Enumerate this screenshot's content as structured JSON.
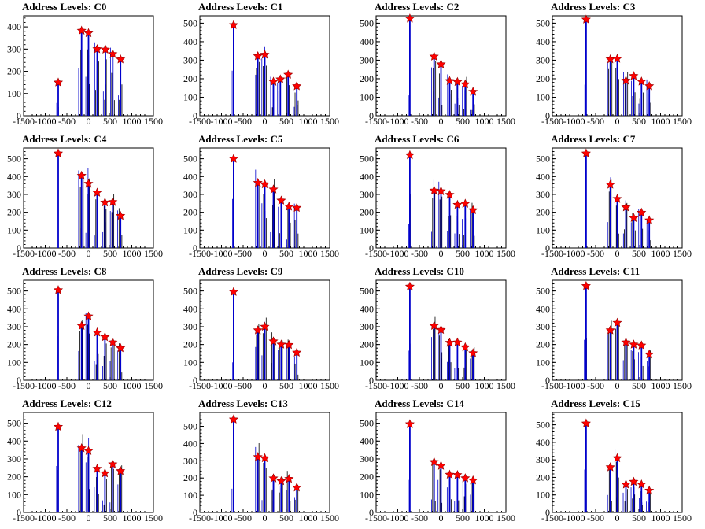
{
  "chart_data": [
    {
      "type": "bar",
      "title": "Address Levels: C0",
      "xlim": [
        -1500,
        1500
      ],
      "ylim": [
        0,
        450
      ],
      "xticks": [
        -1500,
        -1000,
        -500,
        0,
        500,
        1000,
        1500
      ],
      "yticks": [
        0,
        100,
        200,
        300,
        400
      ],
      "peaks": [
        {
          "x": -700,
          "y": 150
        },
        {
          "x": -160,
          "y": 383
        },
        {
          "x": 0,
          "y": 372
        },
        {
          "x": 200,
          "y": 300
        },
        {
          "x": 390,
          "y": 298
        },
        {
          "x": 560,
          "y": 278
        },
        {
          "x": 740,
          "y": 254
        }
      ]
    },
    {
      "type": "bar",
      "title": "Address Levels: C1",
      "xlim": [
        -1500,
        1500
      ],
      "ylim": [
        0,
        540
      ],
      "xticks": [
        -1500,
        -1000,
        -500,
        0,
        500,
        1000,
        1500
      ],
      "yticks": [
        0,
        100,
        200,
        300,
        400,
        500
      ],
      "peaks": [
        {
          "x": -720,
          "y": 490
        },
        {
          "x": -160,
          "y": 322
        },
        {
          "x": 0,
          "y": 330
        },
        {
          "x": 200,
          "y": 184
        },
        {
          "x": 360,
          "y": 197
        },
        {
          "x": 540,
          "y": 222
        },
        {
          "x": 740,
          "y": 160
        }
      ]
    },
    {
      "type": "bar",
      "title": "Address Levels: C2",
      "xlim": [
        -1500,
        1500
      ],
      "ylim": [
        0,
        540
      ],
      "xticks": [
        -1500,
        -1000,
        -500,
        0,
        500,
        1000,
        1500
      ],
      "yticks": [
        0,
        100,
        200,
        300,
        400,
        500
      ],
      "peaks": [
        {
          "x": -720,
          "y": 525
        },
        {
          "x": -160,
          "y": 320
        },
        {
          "x": 0,
          "y": 278
        },
        {
          "x": 200,
          "y": 188
        },
        {
          "x": 380,
          "y": 183
        },
        {
          "x": 560,
          "y": 170
        },
        {
          "x": 740,
          "y": 130
        }
      ]
    },
    {
      "type": "bar",
      "title": "Address Levels: C3",
      "xlim": [
        -1500,
        1500
      ],
      "ylim": [
        0,
        540
      ],
      "xticks": [
        -1500,
        -1000,
        -500,
        0,
        500,
        1000,
        1500
      ],
      "yticks": [
        0,
        100,
        200,
        300,
        400,
        500
      ],
      "peaks": [
        {
          "x": -720,
          "y": 520
        },
        {
          "x": -160,
          "y": 305
        },
        {
          "x": 0,
          "y": 308
        },
        {
          "x": 200,
          "y": 190
        },
        {
          "x": 380,
          "y": 215
        },
        {
          "x": 560,
          "y": 185
        },
        {
          "x": 740,
          "y": 160
        }
      ]
    },
    {
      "type": "bar",
      "title": "Address Levels: C4",
      "xlim": [
        -1500,
        1500
      ],
      "ylim": [
        0,
        560
      ],
      "xticks": [
        -1500,
        -1000,
        -500,
        0,
        500,
        1000,
        1500
      ],
      "yticks": [
        0,
        100,
        200,
        300,
        400,
        500
      ],
      "peaks": [
        {
          "x": -700,
          "y": 530
        },
        {
          "x": -160,
          "y": 405
        },
        {
          "x": 0,
          "y": 360
        },
        {
          "x": 200,
          "y": 310
        },
        {
          "x": 380,
          "y": 255
        },
        {
          "x": 560,
          "y": 258
        },
        {
          "x": 740,
          "y": 180
        }
      ]
    },
    {
      "type": "bar",
      "title": "Address Levels: C5",
      "xlim": [
        -1500,
        1500
      ],
      "ylim": [
        0,
        560
      ],
      "xticks": [
        -1500,
        -1000,
        -500,
        0,
        500,
        1000,
        1500
      ],
      "yticks": [
        0,
        100,
        200,
        300,
        400,
        500
      ],
      "peaks": [
        {
          "x": -720,
          "y": 500
        },
        {
          "x": -160,
          "y": 365
        },
        {
          "x": 0,
          "y": 357
        },
        {
          "x": 200,
          "y": 328
        },
        {
          "x": 380,
          "y": 266
        },
        {
          "x": 560,
          "y": 232
        },
        {
          "x": 740,
          "y": 225
        }
      ]
    },
    {
      "type": "bar",
      "title": "Address Levels: C6",
      "xlim": [
        -1500,
        1500
      ],
      "ylim": [
        0,
        560
      ],
      "xticks": [
        -1500,
        -1000,
        -500,
        0,
        500,
        1000,
        1500
      ],
      "yticks": [
        0,
        100,
        200,
        300,
        400,
        500
      ],
      "peaks": [
        {
          "x": -720,
          "y": 520
        },
        {
          "x": -160,
          "y": 322
        },
        {
          "x": 0,
          "y": 318
        },
        {
          "x": 200,
          "y": 298
        },
        {
          "x": 380,
          "y": 242
        },
        {
          "x": 560,
          "y": 248
        },
        {
          "x": 740,
          "y": 212
        }
      ]
    },
    {
      "type": "bar",
      "title": "Address Levels: C7",
      "xlim": [
        -1500,
        1500
      ],
      "ylim": [
        0,
        560
      ],
      "xticks": [
        -1500,
        -1000,
        -500,
        0,
        500,
        1000,
        1500
      ],
      "yticks": [
        0,
        100,
        200,
        300,
        400,
        500
      ],
      "peaks": [
        {
          "x": -720,
          "y": 530
        },
        {
          "x": -160,
          "y": 355
        },
        {
          "x": 0,
          "y": 275
        },
        {
          "x": 200,
          "y": 228
        },
        {
          "x": 380,
          "y": 168
        },
        {
          "x": 560,
          "y": 198
        },
        {
          "x": 740,
          "y": 155
        }
      ]
    },
    {
      "type": "bar",
      "title": "Address Levels: C8",
      "xlim": [
        -1500,
        1500
      ],
      "ylim": [
        0,
        560
      ],
      "xticks": [
        -1500,
        -1000,
        -500,
        0,
        500,
        1000,
        1500
      ],
      "yticks": [
        0,
        100,
        200,
        300,
        400,
        500
      ],
      "peaks": [
        {
          "x": -700,
          "y": 505
        },
        {
          "x": -160,
          "y": 305
        },
        {
          "x": 0,
          "y": 358
        },
        {
          "x": 200,
          "y": 268
        },
        {
          "x": 380,
          "y": 242
        },
        {
          "x": 560,
          "y": 212
        },
        {
          "x": 740,
          "y": 180
        }
      ]
    },
    {
      "type": "bar",
      "title": "Address Levels: C9",
      "xlim": [
        -1500,
        1500
      ],
      "ylim": [
        0,
        560
      ],
      "xticks": [
        -1500,
        -1000,
        -500,
        0,
        500,
        1000,
        1500
      ],
      "yticks": [
        0,
        100,
        200,
        300,
        400,
        500
      ],
      "peaks": [
        {
          "x": -720,
          "y": 495
        },
        {
          "x": -160,
          "y": 280
        },
        {
          "x": 0,
          "y": 300
        },
        {
          "x": 200,
          "y": 218
        },
        {
          "x": 380,
          "y": 200
        },
        {
          "x": 560,
          "y": 198
        },
        {
          "x": 740,
          "y": 155
        }
      ]
    },
    {
      "type": "bar",
      "title": "Address Levels: C10",
      "xlim": [
        -1500,
        1500
      ],
      "ylim": [
        0,
        560
      ],
      "xticks": [
        -1500,
        -1000,
        -500,
        0,
        500,
        1000,
        1500
      ],
      "yticks": [
        0,
        100,
        200,
        300,
        400,
        500
      ],
      "peaks": [
        {
          "x": -720,
          "y": 525
        },
        {
          "x": -160,
          "y": 305
        },
        {
          "x": 0,
          "y": 282
        },
        {
          "x": 200,
          "y": 210
        },
        {
          "x": 380,
          "y": 212
        },
        {
          "x": 560,
          "y": 185
        },
        {
          "x": 740,
          "y": 152
        }
      ]
    },
    {
      "type": "bar",
      "title": "Address Levels: C11",
      "xlim": [
        -1500,
        1500
      ],
      "ylim": [
        0,
        560
      ],
      "xticks": [
        -1500,
        -1000,
        -500,
        0,
        500,
        1000,
        1500
      ],
      "yticks": [
        0,
        100,
        200,
        300,
        400,
        500
      ],
      "peaks": [
        {
          "x": -720,
          "y": 528
        },
        {
          "x": -160,
          "y": 280
        },
        {
          "x": 0,
          "y": 322
        },
        {
          "x": 200,
          "y": 212
        },
        {
          "x": 380,
          "y": 200
        },
        {
          "x": 560,
          "y": 195
        },
        {
          "x": 740,
          "y": 145
        }
      ]
    },
    {
      "type": "bar",
      "title": "Address Levels: C12",
      "xlim": [
        -1500,
        1500
      ],
      "ylim": [
        0,
        560
      ],
      "xticks": [
        -1500,
        -1000,
        -500,
        0,
        500,
        1000,
        1500
      ],
      "yticks": [
        0,
        100,
        200,
        300,
        400,
        500
      ],
      "peaks": [
        {
          "x": -700,
          "y": 480
        },
        {
          "x": -160,
          "y": 360
        },
        {
          "x": 0,
          "y": 345
        },
        {
          "x": 200,
          "y": 245
        },
        {
          "x": 380,
          "y": 220
        },
        {
          "x": 560,
          "y": 270
        },
        {
          "x": 740,
          "y": 232
        }
      ]
    },
    {
      "type": "bar",
      "title": "Address Levels: C13",
      "xlim": [
        -1500,
        1500
      ],
      "ylim": [
        0,
        580
      ],
      "xticks": [
        -1500,
        -1000,
        -500,
        0,
        500,
        1000,
        1500
      ],
      "yticks": [
        0,
        100,
        200,
        300,
        400,
        500
      ],
      "peaks": [
        {
          "x": -720,
          "y": 540
        },
        {
          "x": -160,
          "y": 322
        },
        {
          "x": 0,
          "y": 315
        },
        {
          "x": 200,
          "y": 198
        },
        {
          "x": 380,
          "y": 182
        },
        {
          "x": 560,
          "y": 195
        },
        {
          "x": 740,
          "y": 145
        }
      ]
    },
    {
      "type": "bar",
      "title": "Address Levels: C14",
      "xlim": [
        -1500,
        1500
      ],
      "ylim": [
        0,
        560
      ],
      "xticks": [
        -1500,
        -1000,
        -500,
        0,
        500,
        1000,
        1500
      ],
      "yticks": [
        0,
        100,
        200,
        300,
        400,
        500
      ],
      "peaks": [
        {
          "x": -720,
          "y": 495
        },
        {
          "x": -160,
          "y": 283
        },
        {
          "x": 0,
          "y": 262
        },
        {
          "x": 200,
          "y": 212
        },
        {
          "x": 380,
          "y": 210
        },
        {
          "x": 560,
          "y": 192
        },
        {
          "x": 740,
          "y": 180
        }
      ]
    },
    {
      "type": "bar",
      "title": "Address Levels: C15",
      "xlim": [
        -1500,
        1500
      ],
      "ylim": [
        0,
        570
      ],
      "xticks": [
        -1500,
        -1000,
        -500,
        0,
        500,
        1000,
        1500
      ],
      "yticks": [
        0,
        100,
        200,
        300,
        400,
        500
      ],
      "peaks": [
        {
          "x": -720,
          "y": 508
        },
        {
          "x": -160,
          "y": 258
        },
        {
          "x": 0,
          "y": 310
        },
        {
          "x": 200,
          "y": 160
        },
        {
          "x": 380,
          "y": 175
        },
        {
          "x": 560,
          "y": 160
        },
        {
          "x": 740,
          "y": 125
        }
      ]
    }
  ],
  "colors": {
    "bar": "#0000cc",
    "marker": "#ff0000",
    "marker_edge": "#990000",
    "axis": "#000000"
  }
}
